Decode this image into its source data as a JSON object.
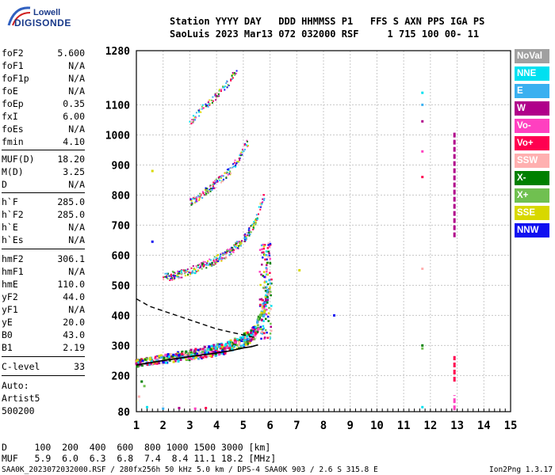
{
  "logo": {
    "line1": "Lowell",
    "line2": "DIGISONDE"
  },
  "header": {
    "line1": "Station YYYY DAY   DDD HHMMSS P1   FFS S AXN PPS IGA PS",
    "line2": "SaoLuis 2023 Mar13 072 032000 RSF     1 715 100 00- 11"
  },
  "params": {
    "foF2": "5.600",
    "foF1": "N/A",
    "foF1p": "N/A",
    "foE": "N/A",
    "foEp": "0.35",
    "fxI": "6.00",
    "foEs": "N/A",
    "fmin": "4.10",
    "MUF_D": "18.20",
    "M_D": "3.25",
    "D": "N/A",
    "h_F": "285.0",
    "h_F2": "285.0",
    "h_E": "N/A",
    "h_Es": "N/A",
    "hmF2": "306.1",
    "hmF1": "N/A",
    "hmE": "110.0",
    "yF2": "44.0",
    "yF1": "N/A",
    "yE": "20.0",
    "B0": "43.0",
    "B1": "2.19",
    "C_level": "33"
  },
  "labels": {
    "foF2": "foF2",
    "foF1": "foF1",
    "foF1p": "foF1p",
    "foE": "foE",
    "foEp": "foEp",
    "fxI": "fxI",
    "foEs": "foEs",
    "fmin": "fmin",
    "MUF_D": "MUF(D)",
    "M_D": "M(D)",
    "D": "D",
    "h_F": "h`F",
    "h_F2": "h`F2",
    "h_E": "h`E",
    "h_Es": "h`Es",
    "hmF2": "hmF2",
    "hmF1": "hmF1",
    "hmE": "hmE",
    "yF2": "yF2",
    "yF1": "yF1",
    "yE": "yE",
    "B0": "B0",
    "B1": "B1",
    "C_level": "C-level"
  },
  "autoscaling": {
    "line1": "Auto:",
    "line2": "Artist5",
    "line3": "500200"
  },
  "legend": [
    {
      "label": "NoVal",
      "color": "#a0a0a0"
    },
    {
      "label": "NNE",
      "color": "#00e0f0"
    },
    {
      "label": "E",
      "color": "#3ab0f0"
    },
    {
      "label": "W",
      "color": "#b0008a"
    },
    {
      "label": "Vo-",
      "color": "#ff40c0"
    },
    {
      "label": "Vo+",
      "color": "#ff0050"
    },
    {
      "label": "SSW",
      "color": "#ffb0b0"
    },
    {
      "label": "X-",
      "color": "#008000"
    },
    {
      "label": "X+",
      "color": "#70c050"
    },
    {
      "label": "SSE",
      "color": "#d8d800"
    },
    {
      "label": "NNW",
      "color": "#1010f0"
    }
  ],
  "muf_table": {
    "d_row": "D     100  200  400  600  800 1000 1500 3000 [km]",
    "muf_row": "MUF   5.9  6.0  6.3  6.8  7.4  8.4 11.1 18.2 [MHz]"
  },
  "footer": {
    "left": "SAA0K_2023072032000.RSF / 280fx256h 50 kHz 5.0 km / DPS-4 SAA0K 903 / 2.6 S 315.8 E",
    "right": "Ion2Png 1.3.17"
  },
  "chart_data": {
    "type": "scatter",
    "xlim": [
      1,
      15
    ],
    "ylim": [
      80,
      1280
    ],
    "x_ticks": [
      1,
      2,
      3,
      4,
      5,
      6,
      7,
      8,
      9,
      10,
      11,
      12,
      13,
      14,
      15
    ],
    "y_ticks": [
      80,
      200,
      300,
      400,
      500,
      600,
      700,
      800,
      900,
      1000,
      1100,
      1280
    ],
    "grid": true,
    "description_series": [
      {
        "name": "O-trace (1st hop)",
        "points": [
          [
            1.0,
            240
          ],
          [
            2.0,
            255
          ],
          [
            3.0,
            268
          ],
          [
            4.0,
            285
          ],
          [
            4.5,
            295
          ],
          [
            5.0,
            315
          ],
          [
            5.4,
            340
          ],
          [
            5.6,
            380
          ],
          [
            5.8,
            430
          ],
          [
            5.95,
            480
          ],
          [
            6.0,
            540
          ]
        ]
      },
      {
        "name": "2nd hop",
        "points": [
          [
            2.0,
            525
          ],
          [
            3.0,
            545
          ],
          [
            4.0,
            585
          ],
          [
            4.5,
            610
          ],
          [
            5.0,
            650
          ],
          [
            5.4,
            700
          ],
          [
            5.6,
            750
          ],
          [
            5.8,
            800
          ]
        ]
      },
      {
        "name": "3rd hop",
        "points": [
          [
            3.0,
            775
          ],
          [
            3.5,
            805
          ],
          [
            4.0,
            840
          ],
          [
            4.5,
            880
          ],
          [
            4.9,
            930
          ],
          [
            5.2,
            980
          ]
        ]
      },
      {
        "name": "4th hop",
        "points": [
          [
            3.0,
            1040
          ],
          [
            3.5,
            1090
          ],
          [
            4.0,
            1130
          ],
          [
            4.5,
            1180
          ],
          [
            4.8,
            1225
          ]
        ]
      },
      {
        "name": "profile (solid)",
        "points": [
          [
            1.0,
            235
          ],
          [
            2.0,
            250
          ],
          [
            3.0,
            263
          ],
          [
            4.0,
            275
          ],
          [
            4.5,
            282
          ],
          [
            5.0,
            292
          ],
          [
            5.3,
            296
          ],
          [
            5.55,
            302
          ]
        ]
      },
      {
        "name": "profile (dashed)",
        "points": [
          [
            1.0,
            455
          ],
          [
            1.5,
            430
          ],
          [
            2.0,
            415
          ],
          [
            3.0,
            385
          ],
          [
            4.0,
            355
          ],
          [
            5.0,
            335
          ],
          [
            5.5,
            325
          ]
        ]
      }
    ]
  }
}
